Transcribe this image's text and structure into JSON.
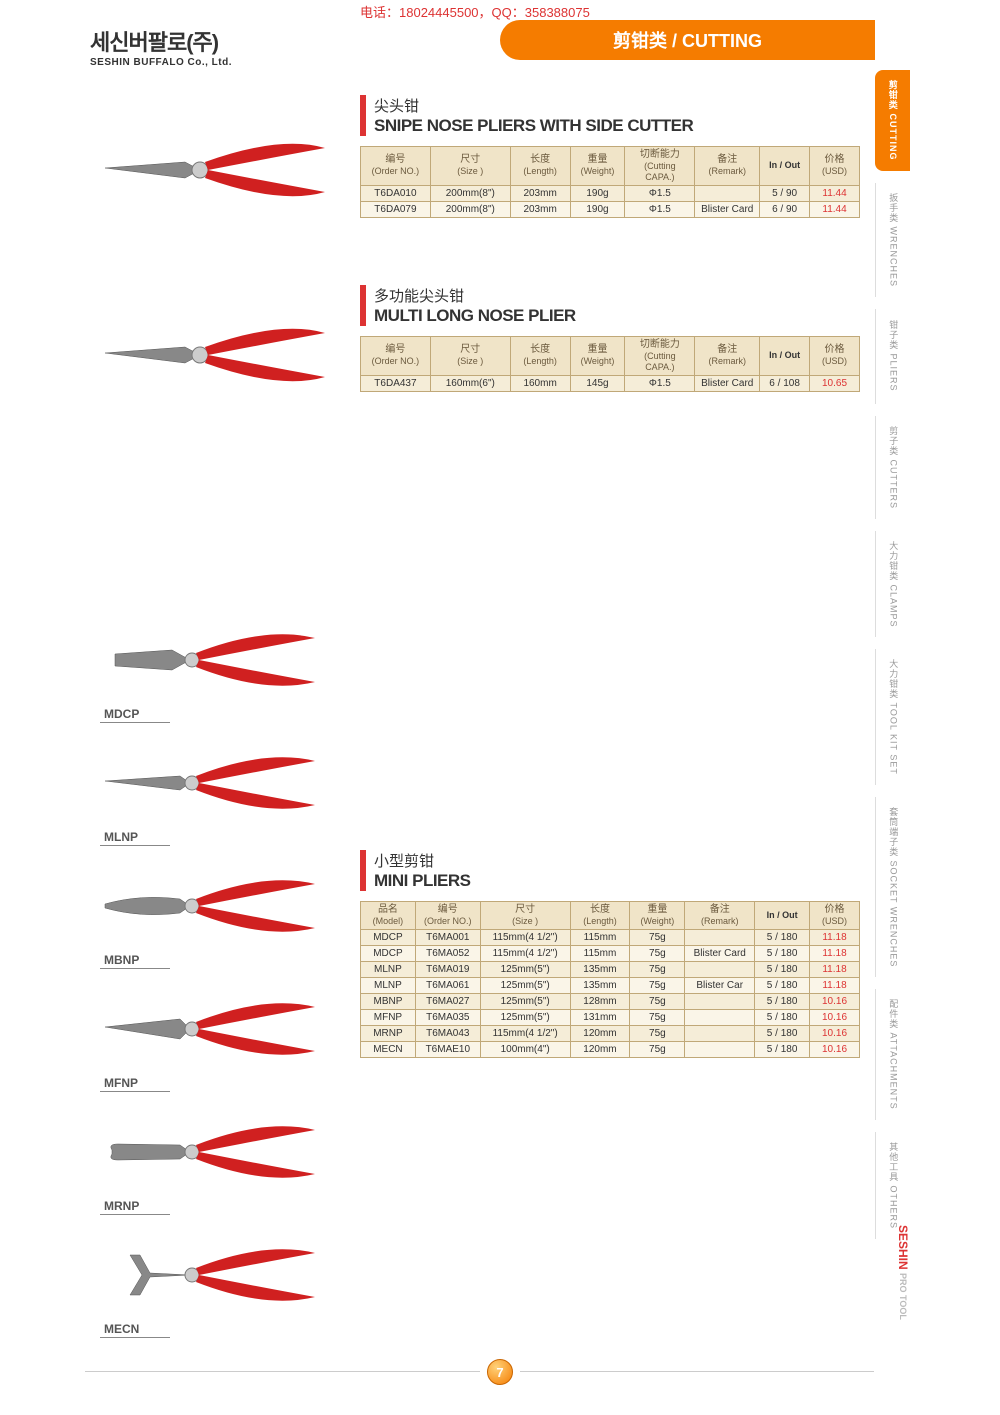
{
  "contact": "电话：18024445500，QQ：358388075",
  "company": {
    "kr": "세신버팔로(주)",
    "en": "SESHIN BUFFALO Co., Ltd."
  },
  "header_band": "剪钳类 / CUTTING",
  "page_number": "7",
  "side_tabs": [
    {
      "cn": "剪钳类",
      "en": "CUTTING",
      "active": true
    },
    {
      "cn": "扳手类",
      "en": "WRENCHES",
      "active": false
    },
    {
      "cn": "钳子类",
      "en": "PLIERS",
      "active": false
    },
    {
      "cn": "剪子类",
      "en": "CUTTERS",
      "active": false
    },
    {
      "cn": "大力钳类",
      "en": "CLAMPS",
      "active": false
    },
    {
      "cn": "大力钳类",
      "en": "TOOL KIT SET",
      "active": false
    },
    {
      "cn": "套筒端子类",
      "en": "SOCKET WRENCHES",
      "active": false
    },
    {
      "cn": "配件类",
      "en": "ATTACHMENTS",
      "active": false
    },
    {
      "cn": "其他工具",
      "en": "OTHERS",
      "active": false
    }
  ],
  "logo_bottom": {
    "s1": "SESHIN",
    "s2": "PRO TOOL"
  },
  "columns_a": [
    {
      "cn": "编号",
      "en": "(Order NO.)"
    },
    {
      "cn": "尺寸",
      "en": "(Size )"
    },
    {
      "cn": "长度",
      "en": "(Length)"
    },
    {
      "cn": "重量",
      "en": "(Weight)"
    },
    {
      "cn": "切断能力",
      "en": "(Cutting CAPA.)"
    },
    {
      "cn": "备注",
      "en": "(Remark)"
    },
    {
      "cn": "",
      "en": "In / Out"
    },
    {
      "cn": "价格",
      "en": "(USD)"
    }
  ],
  "columns_b": [
    {
      "cn": "品名",
      "en": "(Model)"
    },
    {
      "cn": "编号",
      "en": "(Order NO.)"
    },
    {
      "cn": "尺寸",
      "en": "(Size )"
    },
    {
      "cn": "长度",
      "en": "(Length)"
    },
    {
      "cn": "重量",
      "en": "(Weight)"
    },
    {
      "cn": "备注",
      "en": "(Remark)"
    },
    {
      "cn": "",
      "en": "In / Out"
    },
    {
      "cn": "价格",
      "en": "(USD)"
    }
  ],
  "sections": [
    {
      "cn": "尖头钳",
      "en": "SNIPE NOSE PLIERS WITH SIDE CUTTER",
      "cols": "a",
      "rows": [
        [
          "T6DA010",
          "200mm(8\")",
          "203mm",
          "190g",
          "Φ1.5",
          "",
          "5 / 90",
          "11.44"
        ],
        [
          "T6DA079",
          "200mm(8\")",
          "203mm",
          "190g",
          "Φ1.5",
          "Blister Card",
          "6 / 90",
          "11.44"
        ]
      ]
    },
    {
      "cn": "多功能尖头钳",
      "en": "MULTI LONG NOSE PLIER",
      "cols": "a",
      "rows": [
        [
          "T6DA437",
          "160mm(6\")",
          "160mm",
          "145g",
          "Φ1.5",
          "Blister Card",
          "6 / 108",
          "10.65"
        ]
      ]
    },
    {
      "cn": "小型剪钳",
      "en": "MINI PLIERS",
      "cols": "b",
      "rows": [
        [
          "MDCP",
          "T6MA001",
          "115mm(4 1/2\")",
          "115mm",
          "75g",
          "",
          "5 / 180",
          "11.18"
        ],
        [
          "MDCP",
          "T6MA052",
          "115mm(4 1/2\")",
          "115mm",
          "75g",
          "Blister Card",
          "5 / 180",
          "11.18"
        ],
        [
          "MLNP",
          "T6MA019",
          "125mm(5\")",
          "135mm",
          "75g",
          "",
          "5 / 180",
          "11.18"
        ],
        [
          "MLNP",
          "T6MA061",
          "125mm(5\")",
          "135mm",
          "75g",
          "Blister Car",
          "5 / 180",
          "11.18"
        ],
        [
          "MBNP",
          "T6MA027",
          "125mm(5\")",
          "128mm",
          "75g",
          "",
          "5 / 180",
          "10.16"
        ],
        [
          "MFNP",
          "T6MA035",
          "125mm(5\")",
          "131mm",
          "75g",
          "",
          "5 / 180",
          "10.16"
        ],
        [
          "MRNP",
          "T6MA043",
          "115mm(4 1/2\")",
          "120mm",
          "75g",
          "",
          "5 / 180",
          "10.16"
        ],
        [
          "MECN",
          "T6MAE10",
          "100mm(4\")",
          "120mm",
          "75g",
          "",
          "5 / 180",
          "10.16"
        ]
      ]
    }
  ],
  "mini_labels": [
    "MDCP",
    "MLNP",
    "MBNP",
    "MFNP",
    "MRNP",
    "MECN"
  ],
  "col_widths_a": [
    "14%",
    "16%",
    "12%",
    "11%",
    "14%",
    "13%",
    "10%",
    "10%"
  ],
  "col_widths_b": [
    "11%",
    "13%",
    "18%",
    "12%",
    "11%",
    "14%",
    "11%",
    "10%"
  ],
  "colors": {
    "accent": "#f57c00",
    "red": "#d33",
    "table_border": "#c0a878",
    "table_header_bg": "#f0e4c8",
    "row_odd": "#f5edd8",
    "row_even": "#faf5e8"
  }
}
